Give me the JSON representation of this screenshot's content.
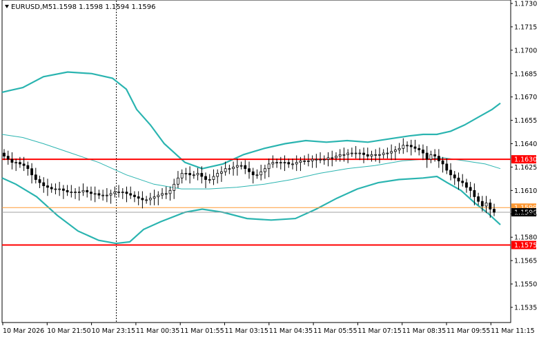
{
  "header": {
    "symbol": "EURUSD,M5",
    "ohlc": "1.1598 1.1598 1.1594 1.1596",
    "menu_icon": "triangle-down-icon"
  },
  "colors": {
    "background": "#ffffff",
    "frame": "#000000",
    "candles": "#000000",
    "bands": "#2ab4b0",
    "middle_band": "#2ab4b0",
    "level_line": "#ff0000",
    "ask_line": "#ff9933",
    "bid_line": "#a0a0a0",
    "grid": "#c0c0c0"
  },
  "chart_data": {
    "type": "line",
    "description_type": "candlestick with Bollinger Bands",
    "ylim": [
      1.153,
      1.1732
    ],
    "y_ticks": [
      "1.1730",
      "1.1715",
      "1.1700",
      "1.1685",
      "1.1670",
      "1.1655",
      "1.1640",
      "1.1625",
      "1.1610",
      "1.1595",
      "1.1580",
      "1.1565",
      "1.1550",
      "1.1535"
    ],
    "x_ticks": [
      "10 Mar 2026",
      "10 Mar 21:50",
      "10 Mar 23:15",
      "11 Mar 00:35",
      "11 Mar 01:55",
      "11 Mar 03:15",
      "11 Mar 04:35",
      "11 Mar 05:55",
      "11 Mar 07:15",
      "11 Mar 08:35",
      "11 Mar 09:55",
      "11 Mar 11:15"
    ],
    "period_separator": "10 Mar 23:15",
    "horizontal_levels": [
      {
        "label": "1.1630",
        "value": 1.163
      },
      {
        "label": "1.1575",
        "value": 1.1575
      }
    ],
    "ask_level": {
      "label": "1.1599",
      "value": 1.1599
    },
    "bid_level": {
      "label": "1.1596",
      "value": 1.1596
    },
    "series": [
      {
        "values": [
          1.1632,
          1.163,
          1.1628,
          1.1628,
          1.1627,
          1.1626,
          1.1624,
          1.162,
          1.1617,
          1.1615,
          1.1613,
          1.1612,
          1.1611,
          1.1611,
          1.1611,
          1.161,
          1.1609,
          1.1609,
          1.1609,
          1.1609,
          1.161,
          1.1609,
          1.1608,
          1.1608,
          1.1607,
          1.1607,
          1.1607,
          1.1608,
          1.1609,
          1.1609,
          1.1609,
          1.1608,
          1.1607,
          1.1606,
          1.1605,
          1.1604,
          1.1604,
          1.1605,
          1.1606,
          1.1607,
          1.1608,
          1.1608,
          1.161,
          1.1614,
          1.1618,
          1.1621,
          1.1621,
          1.162,
          1.162,
          1.1621,
          1.1619,
          1.1617,
          1.1617,
          1.1619,
          1.1621,
          1.1622,
          1.1624,
          1.1624,
          1.1625,
          1.1626,
          1.1626,
          1.1624,
          1.1622,
          1.162,
          1.162,
          1.1622,
          1.1624,
          1.1627,
          1.1628,
          1.1628,
          1.1628,
          1.1628,
          1.1627,
          1.1627,
          1.1628,
          1.1629,
          1.1629,
          1.1629,
          1.163,
          1.163,
          1.163,
          1.163,
          1.1631,
          1.1631,
          1.1632,
          1.1633,
          1.1633,
          1.1634,
          1.1634,
          1.1634,
          1.1634,
          1.1633,
          1.1632,
          1.1633,
          1.1633,
          1.1633,
          1.1634,
          1.1634,
          1.1635,
          1.1636,
          1.1637,
          1.1639,
          1.1639,
          1.1638,
          1.1637,
          1.1636,
          1.1634,
          1.163,
          1.1633,
          1.1632,
          1.1629,
          1.1627,
          1.1623,
          1.162,
          1.1618,
          1.1616,
          1.1615,
          1.1612,
          1.161,
          1.1606,
          1.1603,
          1.16,
          1.1602,
          1.1598,
          1.1596
        ]
      }
    ],
    "bands": {
      "upper": [
        [
          0,
          1.1673
        ],
        [
          10,
          1.1674
        ],
        [
          30,
          1.1676
        ],
        [
          60,
          1.1683
        ],
        [
          95,
          1.1686
        ],
        [
          130,
          1.1685
        ],
        [
          160,
          1.1682
        ],
        [
          180,
          1.1675
        ],
        [
          195,
          1.1662
        ],
        [
          215,
          1.1652
        ],
        [
          235,
          1.164
        ],
        [
          265,
          1.1628
        ],
        [
          290,
          1.1624
        ],
        [
          320,
          1.1627
        ],
        [
          350,
          1.1633
        ],
        [
          380,
          1.1637
        ],
        [
          410,
          1.164
        ],
        [
          440,
          1.1642
        ],
        [
          470,
          1.1641
        ],
        [
          500,
          1.1642
        ],
        [
          530,
          1.1641
        ],
        [
          560,
          1.1643
        ],
        [
          590,
          1.1645
        ],
        [
          610,
          1.1646
        ],
        [
          630,
          1.1646
        ],
        [
          650,
          1.1648
        ],
        [
          670,
          1.1652
        ],
        [
          690,
          1.1657
        ],
        [
          710,
          1.1662
        ],
        [
          722,
          1.1666
        ]
      ],
      "middle": [
        [
          0,
          1.1646
        ],
        [
          30,
          1.1644
        ],
        [
          60,
          1.164
        ],
        [
          100,
          1.1634
        ],
        [
          140,
          1.1628
        ],
        [
          180,
          1.162
        ],
        [
          220,
          1.1614
        ],
        [
          260,
          1.1611
        ],
        [
          300,
          1.1611
        ],
        [
          340,
          1.1612
        ],
        [
          380,
          1.1614
        ],
        [
          420,
          1.1617
        ],
        [
          460,
          1.1621
        ],
        [
          500,
          1.1624
        ],
        [
          540,
          1.1626
        ],
        [
          580,
          1.1629
        ],
        [
          610,
          1.163
        ],
        [
          640,
          1.1631
        ],
        [
          670,
          1.1629
        ],
        [
          700,
          1.1627
        ],
        [
          722,
          1.1624
        ]
      ],
      "lower": [
        [
          0,
          1.1618
        ],
        [
          20,
          1.1614
        ],
        [
          50,
          1.1606
        ],
        [
          80,
          1.1594
        ],
        [
          110,
          1.1584
        ],
        [
          140,
          1.1578
        ],
        [
          165,
          1.1576
        ],
        [
          185,
          1.1577
        ],
        [
          205,
          1.1585
        ],
        [
          230,
          1.159
        ],
        [
          265,
          1.1596
        ],
        [
          290,
          1.1598
        ],
        [
          320,
          1.1596
        ],
        [
          355,
          1.1592
        ],
        [
          390,
          1.1591
        ],
        [
          425,
          1.1592
        ],
        [
          455,
          1.1598
        ],
        [
          485,
          1.1605
        ],
        [
          515,
          1.1611
        ],
        [
          545,
          1.1615
        ],
        [
          575,
          1.1617
        ],
        [
          610,
          1.1618
        ],
        [
          630,
          1.1619
        ],
        [
          645,
          1.1615
        ],
        [
          665,
          1.161
        ],
        [
          685,
          1.1602
        ],
        [
          705,
          1.1595
        ],
        [
          722,
          1.1588
        ]
      ]
    }
  }
}
